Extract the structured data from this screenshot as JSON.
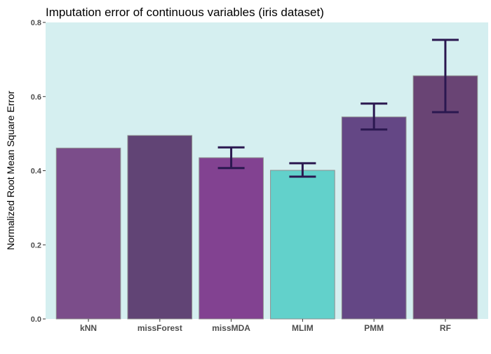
{
  "chart_data": {
    "type": "bar",
    "title": "Imputation error of continuous variables (iris dataset)",
    "xlabel": "",
    "ylabel": "Normalized Root Mean Square Error",
    "ylim": [
      0,
      0.8
    ],
    "yticks": [
      "0.0",
      "0.2",
      "0.4",
      "0.6",
      "0.8"
    ],
    "grid": false,
    "categories": [
      "kNN",
      "missForest",
      "missMDA",
      "MLIM",
      "PMM",
      "RF"
    ],
    "values": [
      0.461,
      0.495,
      0.435,
      0.401,
      0.545,
      0.656
    ],
    "error_bars": [
      null,
      null,
      [
        0.407,
        0.463
      ],
      [
        0.384,
        0.42
      ],
      [
        0.511,
        0.581
      ],
      [
        0.558,
        0.753
      ]
    ],
    "colors": [
      "#7b4d8a",
      "#614475",
      "#824291",
      "#62d1cb",
      "#644785",
      "#694474"
    ],
    "panel_background": "#d5eff0",
    "errorbar_color": "#2b1850",
    "bar_border": "#8f8f8f"
  }
}
